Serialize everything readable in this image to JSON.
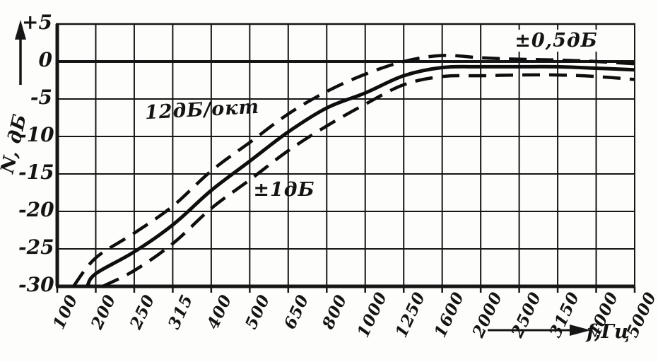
{
  "colors": {
    "ink": "#161616",
    "paper": "#fdfdfb",
    "curve": "#0e0e0e"
  },
  "chart_data": {
    "type": "line",
    "title": "",
    "x_axis": {
      "title": "f,Гц",
      "unit": "Гц",
      "scale": "third-octave steps, equal spacing",
      "tick_labels": [
        "100",
        "200",
        "250",
        "315",
        "400",
        "500",
        "650",
        "800",
        "1000",
        "1250",
        "1600",
        "2000",
        "2500",
        "3150",
        "4000",
        "5000"
      ]
    },
    "y_axis": {
      "title": "N, дБ",
      "range": [
        -30,
        5
      ],
      "tick_labels": [
        "+5",
        "0",
        "-5",
        "-10",
        "-15",
        "-20",
        "-25",
        "-30"
      ],
      "tick_values": [
        5,
        0,
        -5,
        -10,
        -15,
        -20,
        -25,
        -30
      ]
    },
    "annotations": {
      "slope": "12дБ/окт",
      "tolerance_mid": "±1дБ",
      "tolerance_flat": "±0,5дБ"
    },
    "x_units_note": "points are [tick_position, dB]; tick_position 0=100Гц … 15=5000Гц",
    "series": [
      {
        "name": "upper tolerance limit",
        "line_style": "dashed",
        "points": [
          [
            0.42,
            -30
          ],
          [
            1,
            -26.2
          ],
          [
            2,
            -22.9
          ],
          [
            3,
            -19.3
          ],
          [
            4,
            -14.6
          ],
          [
            5,
            -10.8
          ],
          [
            6,
            -7.0
          ],
          [
            7,
            -4.0
          ],
          [
            8,
            -1.7
          ],
          [
            9,
            0.0
          ],
          [
            10,
            0.8
          ],
          [
            11,
            0.5
          ],
          [
            12,
            0.3
          ],
          [
            13,
            0.2
          ],
          [
            14,
            0.0
          ],
          [
            15,
            -0.3
          ]
        ]
      },
      {
        "name": "nominal response",
        "line_style": "solid",
        "points": [
          [
            0.78,
            -30
          ],
          [
            1,
            -28.3
          ],
          [
            2,
            -25.4
          ],
          [
            3,
            -21.8
          ],
          [
            4,
            -17.2
          ],
          [
            5,
            -13.3
          ],
          [
            6,
            -9.4
          ],
          [
            7,
            -6.2
          ],
          [
            8,
            -4.2
          ],
          [
            9,
            -1.9
          ],
          [
            10,
            -0.8
          ],
          [
            11,
            -0.7
          ],
          [
            12,
            -0.7
          ],
          [
            13,
            -0.7
          ],
          [
            14,
            -0.9
          ],
          [
            15,
            -1.1
          ]
        ]
      },
      {
        "name": "lower tolerance limit",
        "line_style": "dashed",
        "points": [
          [
            1.18,
            -30
          ],
          [
            2,
            -27.9
          ],
          [
            3,
            -24.3
          ],
          [
            4,
            -19.6
          ],
          [
            5,
            -15.8
          ],
          [
            6,
            -11.9
          ],
          [
            7,
            -8.6
          ],
          [
            8,
            -5.7
          ],
          [
            9,
            -3.1
          ],
          [
            10,
            -2.0
          ],
          [
            11,
            -1.9
          ],
          [
            12,
            -1.8
          ],
          [
            13,
            -1.8
          ],
          [
            14,
            -2.0
          ],
          [
            15,
            -2.4
          ]
        ]
      }
    ],
    "grid": true,
    "legend": "none"
  }
}
